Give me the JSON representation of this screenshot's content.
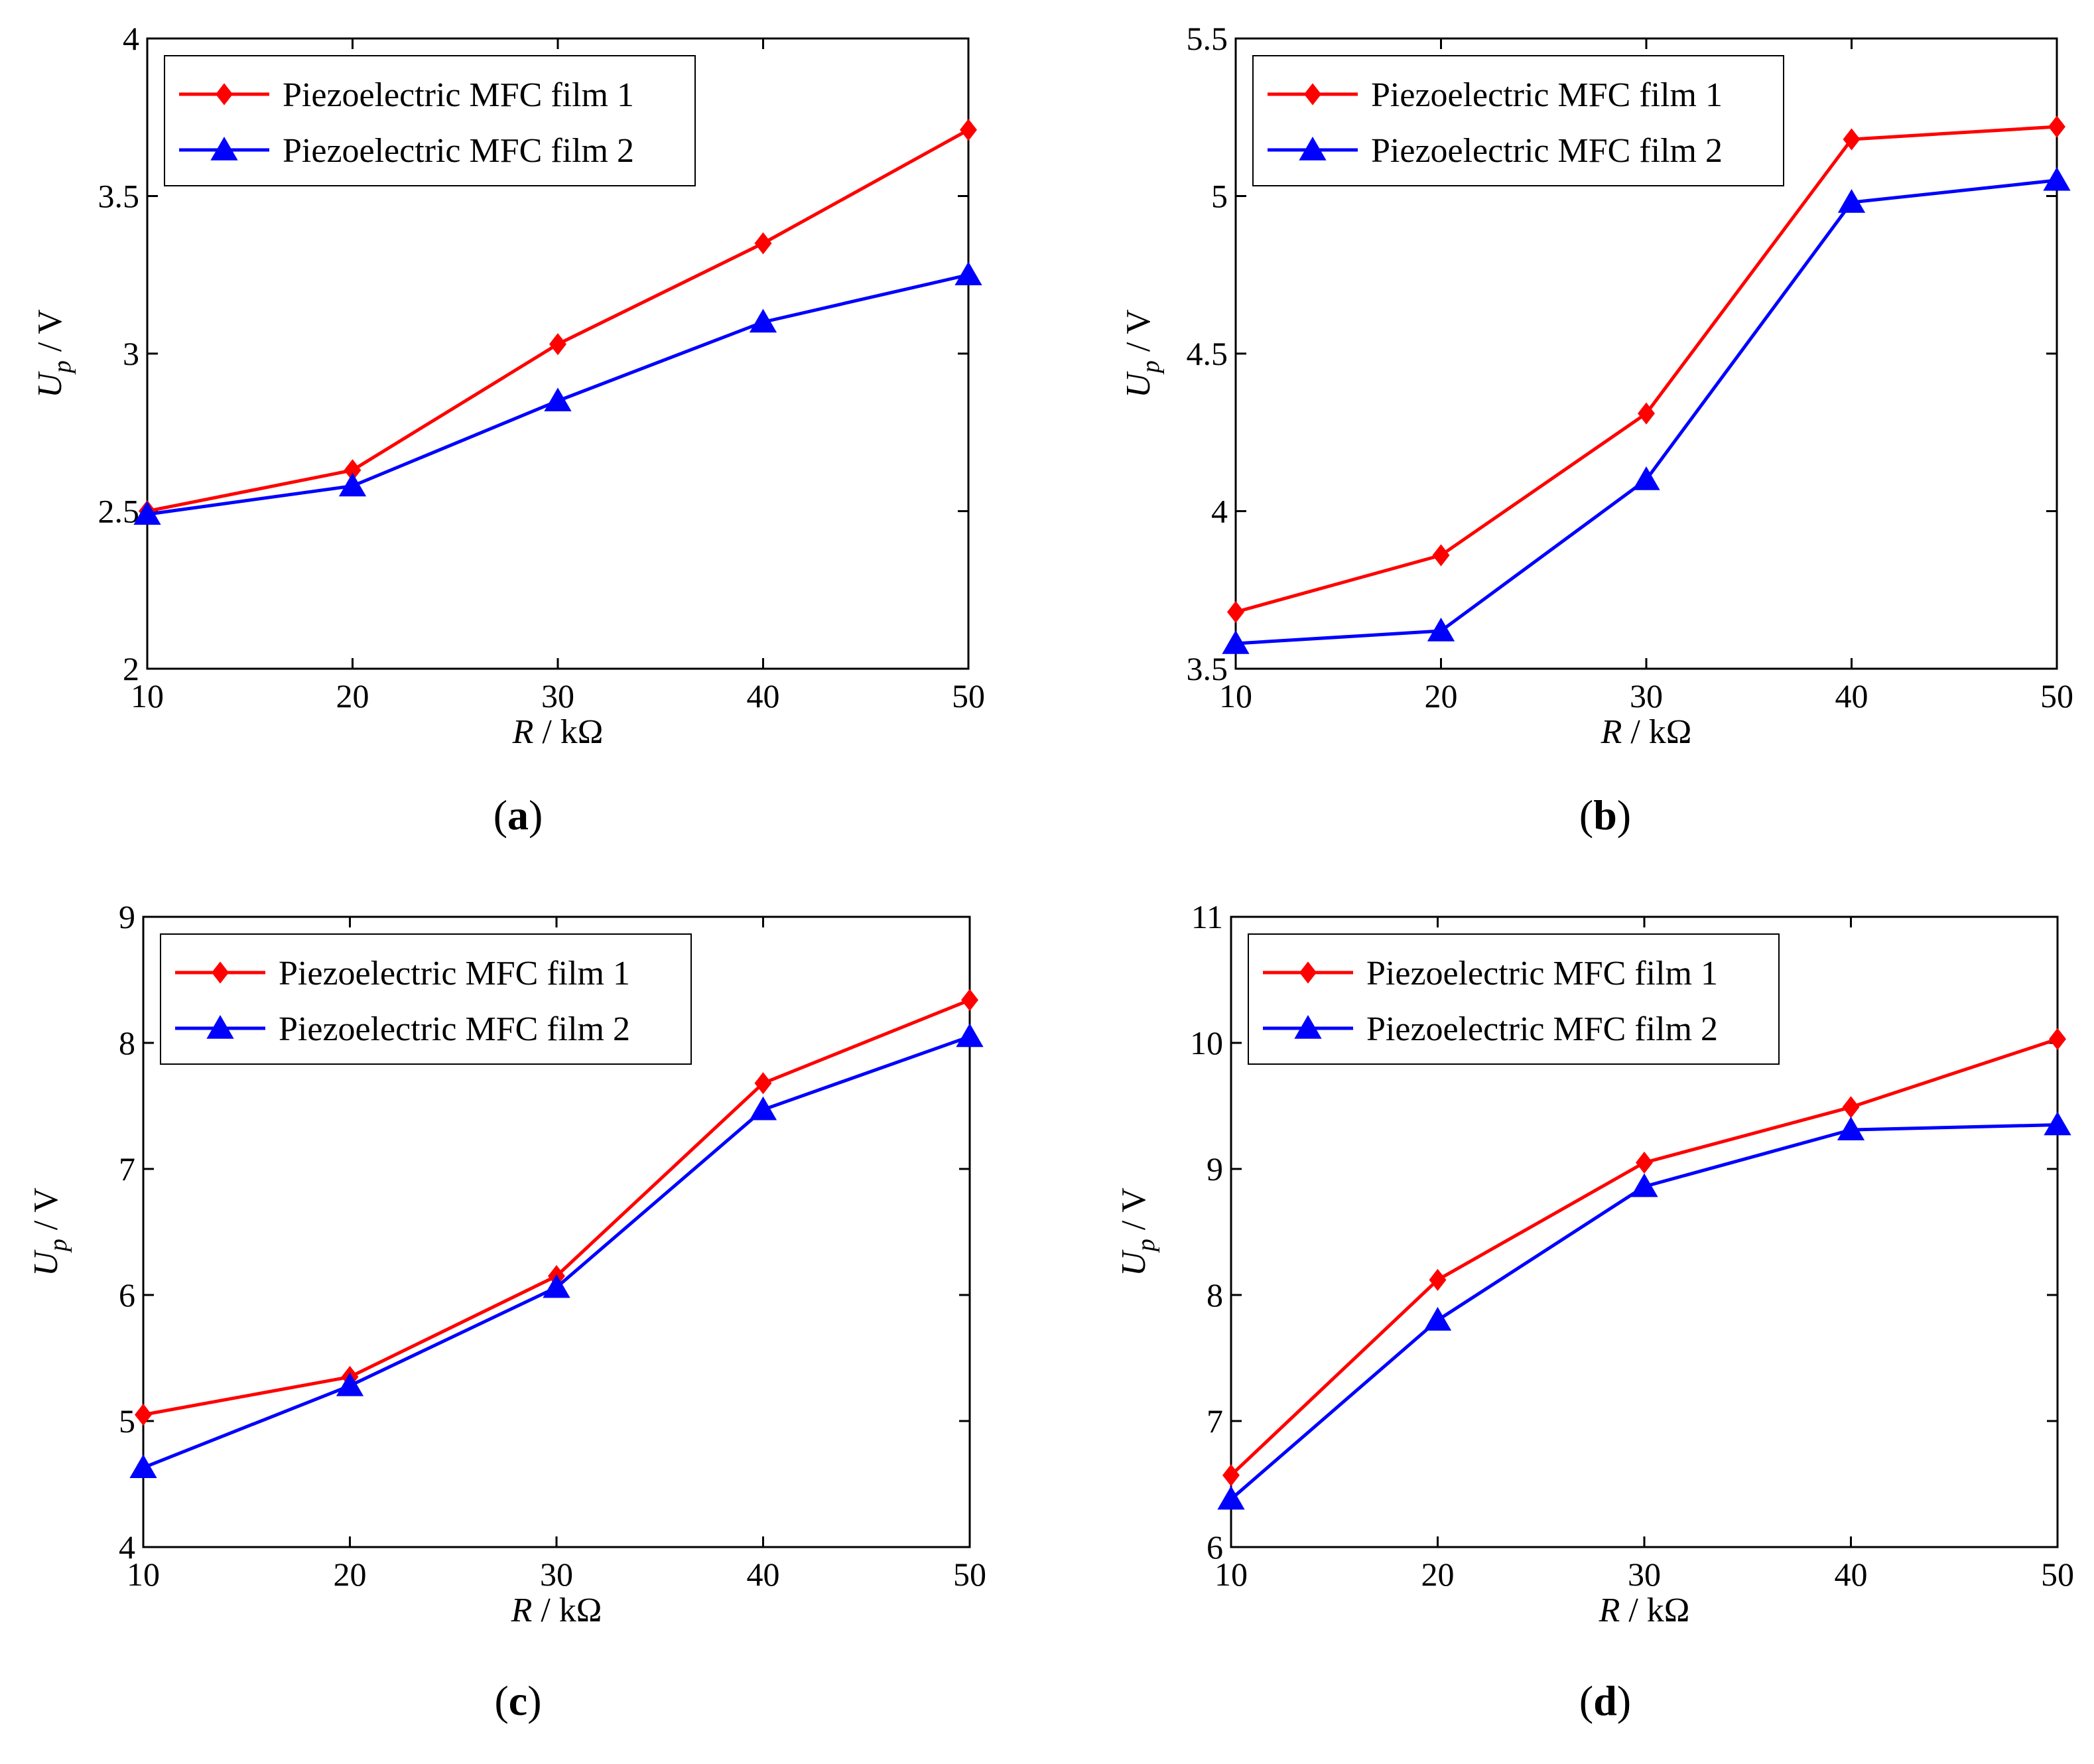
{
  "colors": {
    "series1": "#ff0000",
    "series2": "#0000ff",
    "axis": "#000000"
  },
  "chart_data": [
    {
      "type": "line",
      "panel_label": "a",
      "xlabel_var": "R",
      "xlabel_unit": " / kΩ",
      "ylabel_var": "U",
      "ylabel_sub": "p",
      "ylabel_unit": " / V",
      "xlim": [
        10,
        50
      ],
      "ylim": [
        2,
        4
      ],
      "xticks": [
        10,
        20,
        30,
        40,
        50
      ],
      "yticks": [
        2,
        2.5,
        3,
        3.5,
        4
      ],
      "xtick_labels": [
        "10",
        "20",
        "30",
        "40",
        "50"
      ],
      "ytick_labels": [
        "2",
        "2.5",
        "3",
        "3.5",
        "4"
      ],
      "legend_position": "top-left",
      "x": [
        10,
        20,
        30,
        40,
        50
      ],
      "series": [
        {
          "name": "Piezoelectric MFC film 1",
          "marker": "diamond",
          "values": [
            2.5,
            2.63,
            3.03,
            3.35,
            3.71
          ]
        },
        {
          "name": "Piezoelectric MFC film 2",
          "marker": "triangle",
          "values": [
            2.49,
            2.58,
            2.85,
            3.1,
            3.25
          ]
        }
      ]
    },
    {
      "type": "line",
      "panel_label": "b",
      "xlabel_var": "R",
      "xlabel_unit": " / kΩ",
      "ylabel_var": "U",
      "ylabel_sub": "p",
      "ylabel_unit": " / V",
      "xlim": [
        10,
        50
      ],
      "ylim": [
        3.5,
        5.5
      ],
      "xticks": [
        10,
        20,
        30,
        40,
        50
      ],
      "yticks": [
        3.5,
        4,
        4.5,
        5,
        5.5
      ],
      "xtick_labels": [
        "10",
        "20",
        "30",
        "40",
        "50"
      ],
      "ytick_labels": [
        "3.5",
        "4",
        "4.5",
        "5",
        "5.5"
      ],
      "legend_position": "top-left",
      "x": [
        10,
        20,
        30,
        40,
        50
      ],
      "series": [
        {
          "name": "Piezoelectric MFC film 1",
          "marker": "diamond",
          "values": [
            3.68,
            3.86,
            4.31,
            5.18,
            5.22
          ]
        },
        {
          "name": "Piezoelectric MFC film 2",
          "marker": "triangle",
          "values": [
            3.58,
            3.62,
            4.1,
            4.98,
            5.05
          ]
        }
      ]
    },
    {
      "type": "line",
      "panel_label": "c",
      "xlabel_var": "R",
      "xlabel_unit": " / kΩ",
      "ylabel_var": "U",
      "ylabel_sub": "p",
      "ylabel_unit": " / V",
      "xlim": [
        10,
        50
      ],
      "ylim": [
        4,
        9
      ],
      "xticks": [
        10,
        20,
        30,
        40,
        50
      ],
      "yticks": [
        4,
        5,
        6,
        7,
        8,
        9
      ],
      "xtick_labels": [
        "10",
        "20",
        "30",
        "40",
        "50"
      ],
      "ytick_labels": [
        "4",
        "5",
        "6",
        "7",
        "8",
        "9"
      ],
      "legend_position": "top-left",
      "x": [
        10,
        20,
        30,
        40,
        50
      ],
      "series": [
        {
          "name": "Piezoelectric MFC film 1",
          "marker": "diamond",
          "values": [
            5.05,
            5.35,
            6.15,
            7.68,
            8.34
          ]
        },
        {
          "name": "Piezoelectric MFC film 2",
          "marker": "triangle",
          "values": [
            4.63,
            5.28,
            6.06,
            7.47,
            8.05
          ]
        }
      ]
    },
    {
      "type": "line",
      "panel_label": "d",
      "xlabel_var": "R",
      "xlabel_unit": " / kΩ",
      "ylabel_var": "U",
      "ylabel_sub": "p",
      "ylabel_unit": " / V",
      "xlim": [
        10,
        50
      ],
      "ylim": [
        6,
        11
      ],
      "xticks": [
        10,
        20,
        30,
        40,
        50
      ],
      "yticks": [
        6,
        7,
        8,
        9,
        10,
        11
      ],
      "xtick_labels": [
        "10",
        "20",
        "30",
        "40",
        "50"
      ],
      "ytick_labels": [
        "6",
        "7",
        "8",
        "9",
        "10",
        "11"
      ],
      "legend_position": "top-left",
      "x": [
        10,
        20,
        30,
        40,
        50
      ],
      "series": [
        {
          "name": "Piezoelectric MFC film 1",
          "marker": "diamond",
          "values": [
            6.57,
            8.12,
            9.05,
            9.49,
            10.03
          ]
        },
        {
          "name": "Piezoelectric MFC film 2",
          "marker": "triangle",
          "values": [
            6.38,
            7.8,
            8.86,
            9.31,
            9.35
          ]
        }
      ]
    }
  ]
}
